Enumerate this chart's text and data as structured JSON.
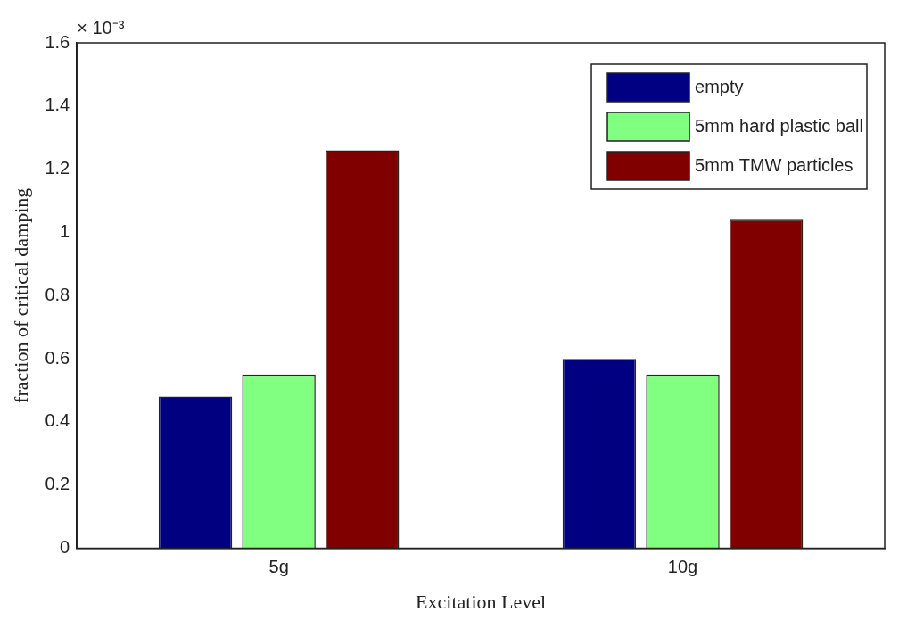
{
  "chart_data": {
    "type": "bar",
    "xlabel": "Excitation Level",
    "ylabel": "fraction of critical damping",
    "categories": [
      "5g",
      "10g"
    ],
    "series": [
      {
        "name": "empty",
        "color": "#000080",
        "values": [
          0.48,
          0.6
        ]
      },
      {
        "name": "5mm hard plastic ball",
        "color": "#80ff80",
        "values": [
          0.55,
          0.55
        ]
      },
      {
        "name": "5mm TMW particles",
        "color": "#800000",
        "values": [
          1.26,
          1.04
        ]
      }
    ],
    "ylim": [
      0,
      1.6
    ],
    "yticks": [
      0,
      0.2,
      0.4,
      0.6,
      0.8,
      1,
      1.2,
      1.4,
      1.6
    ],
    "grid": false,
    "legend": "top right",
    "annotations": [
      "× 10⁻³"
    ]
  }
}
